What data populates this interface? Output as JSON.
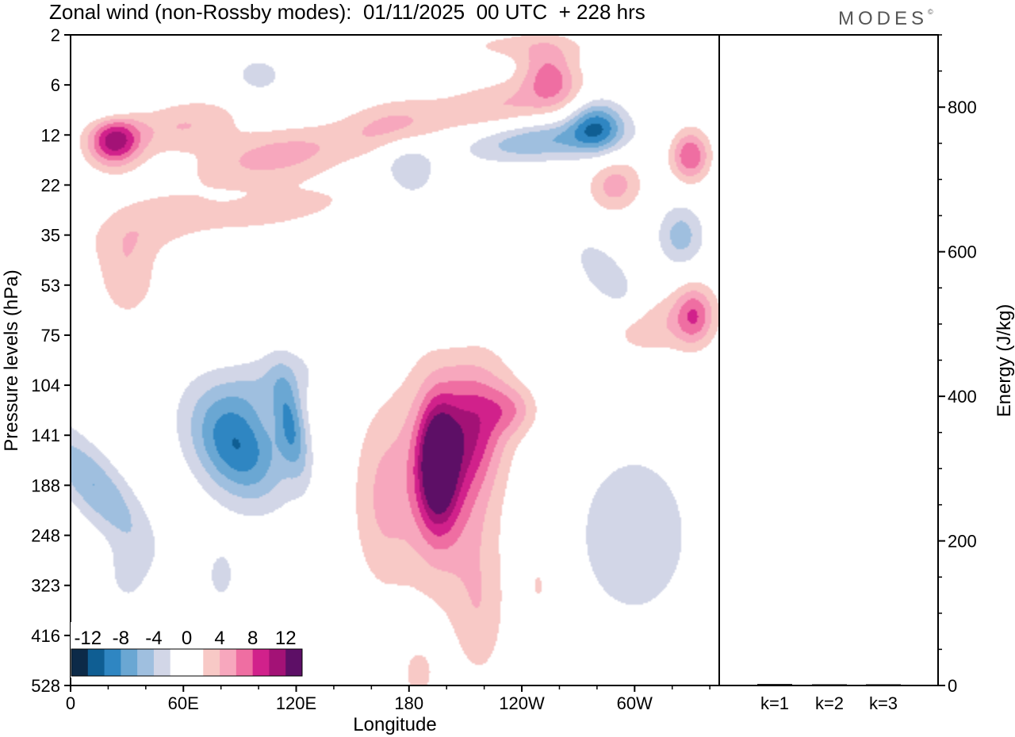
{
  "header": {
    "title": "Zonal wind (non-Rossby modes):  01/11/2025  00 UTC  + 228 hrs",
    "brand": "MODES",
    "brand_mark": "©"
  },
  "colors": {
    "neg": [
      "#0c2a48",
      "#0f5e93",
      "#2f86c2",
      "#6aa7d3",
      "#9fbfdf",
      "#d2d6e7"
    ],
    "zero": "#ffffff",
    "pos": [
      "#f8c9c6",
      "#f7a7bd",
      "#ef6ea2",
      "#d1218b",
      "#a31276",
      "#5d0f66"
    ]
  },
  "chart_data": [
    {
      "type": "heatmap",
      "title": "Zonal wind (non-Rossby modes)",
      "xlabel": "Longitude",
      "ylabel": "Pressure levels (hPa)",
      "x_ticks": [
        "0",
        "60E",
        "120E",
        "180",
        "120W",
        "60W"
      ],
      "x_range": [
        0,
        345
      ],
      "y_levels": [
        "2",
        "6",
        "12",
        "22",
        "35",
        "53",
        "75",
        "104",
        "141",
        "188",
        "248",
        "323",
        "416",
        "528"
      ],
      "colorbar": {
        "labels": [
          "-12",
          "-8",
          "-4",
          "0",
          "4",
          "8",
          "12"
        ],
        "levels": [
          -14,
          -12,
          -10,
          -8,
          -6,
          -4,
          -2,
          2,
          4,
          6,
          8,
          10,
          12,
          14
        ]
      },
      "blobs": [
        {
          "lon": 88,
          "lev": 8.2,
          "rx": 22,
          "ry": 1.2,
          "v": -10,
          "rot": -30
        },
        {
          "lon": 117,
          "lev": 7.8,
          "rx": 8,
          "ry": 1.0,
          "v": -7,
          "rot": -10
        },
        {
          "lon": 12,
          "lev": 9.0,
          "rx": 14,
          "ry": 1.6,
          "v": -6,
          "rot": -40
        },
        {
          "lon": 108,
          "lev": 6.9,
          "rx": 28,
          "ry": 0.6,
          "v": -3,
          "rot": -20
        },
        {
          "lon": 200,
          "lev": 8.8,
          "rx": 26,
          "ry": 2.2,
          "v": 7,
          "rot": 0
        },
        {
          "lon": 195,
          "lev": 8.6,
          "rx": 10,
          "ry": 1.2,
          "v": 11,
          "rot": 0
        },
        {
          "lon": 215,
          "lev": 7.8,
          "rx": 18,
          "ry": 1.2,
          "v": 6,
          "rot": 10
        },
        {
          "lon": 165,
          "lev": 9.3,
          "rx": 16,
          "ry": 1.8,
          "v": 3.5,
          "rot": 0
        },
        {
          "lon": 218,
          "lev": 11.6,
          "rx": 14,
          "ry": 1.4,
          "v": 3,
          "rot": 0
        },
        {
          "lon": 235,
          "lev": 7.5,
          "rx": 14,
          "ry": 0.5,
          "v": 4,
          "rot": 0
        },
        {
          "lon": 300,
          "lev": 10.0,
          "rx": 40,
          "ry": 2.2,
          "v": -3,
          "rot": 0
        },
        {
          "lon": 315,
          "lev": 5.8,
          "rx": 30,
          "ry": 0.6,
          "v": 3.5,
          "rot": -15
        },
        {
          "lon": 332,
          "lev": 5.6,
          "rx": 10,
          "ry": 0.6,
          "v": 6,
          "rot": 0
        },
        {
          "lon": 200,
          "lev": 5.7,
          "rx": 16,
          "ry": 0.4,
          "v": -3,
          "rot": 0
        },
        {
          "lon": 285,
          "lev": 4.8,
          "rx": 10,
          "ry": 0.8,
          "v": -4,
          "rot": -40
        },
        {
          "lon": 325,
          "lev": 4.0,
          "rx": 12,
          "ry": 0.6,
          "v": -5,
          "rot": 0
        },
        {
          "lon": 330,
          "lev": 2.4,
          "rx": 10,
          "ry": 0.5,
          "v": 8,
          "rot": 0
        },
        {
          "lon": 250,
          "lev": 2.1,
          "rx": 40,
          "ry": 0.4,
          "v": -6,
          "rot": -5
        },
        {
          "lon": 280,
          "lev": 1.8,
          "rx": 14,
          "ry": 0.5,
          "v": -8,
          "rot": -20
        },
        {
          "lon": 230,
          "lev": 1.4,
          "rx": 40,
          "ry": 0.5,
          "v": 4,
          "rot": -10
        },
        {
          "lon": 255,
          "lev": 0.8,
          "rx": 14,
          "ry": 0.6,
          "v": 6,
          "rot": -20
        },
        {
          "lon": 23,
          "lev": 2.1,
          "rx": 14,
          "ry": 0.5,
          "v": 11,
          "rot": -20
        },
        {
          "lon": 60,
          "lev": 1.8,
          "rx": 30,
          "ry": 0.5,
          "v": 4,
          "rot": -10
        },
        {
          "lon": 110,
          "lev": 2.4,
          "rx": 40,
          "ry": 0.5,
          "v": 5,
          "rot": -10
        },
        {
          "lon": 170,
          "lev": 1.8,
          "rx": 26,
          "ry": 0.5,
          "v": 4,
          "rot": -10
        },
        {
          "lon": 180,
          "lev": 2.7,
          "rx": 14,
          "ry": 0.6,
          "v": -4,
          "rot": -30
        },
        {
          "lon": 290,
          "lev": 3.0,
          "rx": 14,
          "ry": 0.5,
          "v": 5,
          "rot": -40
        },
        {
          "lon": 30,
          "lev": 4.8,
          "rx": 16,
          "ry": 0.9,
          "v": 3.5,
          "rot": 0
        },
        {
          "lon": 40,
          "lev": 3.7,
          "rx": 34,
          "ry": 0.6,
          "v": 2.5,
          "rot": -20
        },
        {
          "lon": 110,
          "lev": 3.5,
          "rx": 60,
          "ry": 0.5,
          "v": 2.5,
          "rot": -10
        },
        {
          "lon": 100,
          "lev": 0.8,
          "rx": 14,
          "ry": 0.4,
          "v": -3,
          "rot": 0
        },
        {
          "lon": 20,
          "lev": 1.4,
          "rx": 14,
          "ry": 0.4,
          "v": -3,
          "rot": 0
        },
        {
          "lon": 240,
          "lev": 0.2,
          "rx": 40,
          "ry": 0.3,
          "v": 2.5,
          "rot": 0
        },
        {
          "lon": 185,
          "lev": 12.8,
          "rx": 10,
          "ry": 0.6,
          "v": 2.5,
          "rot": 0
        },
        {
          "lon": 250,
          "lev": 11.0,
          "rx": 10,
          "ry": 0.8,
          "v": 2.5,
          "rot": 0
        },
        {
          "lon": 80,
          "lev": 10.8,
          "rx": 10,
          "ry": 0.7,
          "v": -2.5,
          "rot": 0
        },
        {
          "lon": 30,
          "lev": 10.8,
          "rx": 12,
          "ry": 0.7,
          "v": -2.5,
          "rot": 0
        }
      ]
    },
    {
      "type": "bar",
      "title": "",
      "categories": [
        "k=1",
        "k=2",
        "k=3"
      ],
      "values": [
        2,
        1,
        0.5
      ],
      "ylabel": "Energy (J/kg)",
      "ylim": [
        0,
        900
      ],
      "y_ticks": [
        0,
        200,
        400,
        600,
        800
      ]
    }
  ]
}
